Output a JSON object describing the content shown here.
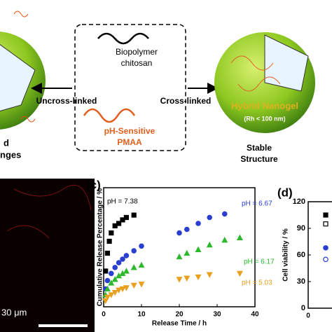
{
  "diagram": {
    "chitosan": [
      "Biopolymer",
      "chitosan"
    ],
    "pmaa": [
      "pH-Sensitive",
      "PMAA"
    ],
    "left_arrow": "Uncross-linked",
    "right_arrow": "Cross-linked",
    "nanogel": "Hybrid Nanogel",
    "size": "(Rh < 100 nm)",
    "stable": [
      "Stable",
      "Structure"
    ],
    "left_cut": [
      "d",
      "nges"
    ]
  },
  "micrograph": {
    "scale_bar": "30 μm"
  },
  "chart_data": [
    {
      "type": "scatter",
      "panel": "(c)",
      "x_label": "Release Time / h",
      "y_label": "Cumulative Release Percentage / %",
      "xlim": [
        0,
        40
      ],
      "xticks": [
        0,
        10,
        20,
        30,
        40
      ],
      "ylim": [
        0,
        100
      ],
      "series": [
        {
          "name": "pH = 7.38",
          "color": "#000000",
          "marker": "square",
          "x": [
            0.5,
            1,
            1.5,
            2,
            3,
            4,
            5,
            6,
            8
          ],
          "values": [
            30,
            45,
            55,
            62,
            68,
            70,
            73,
            75,
            77
          ]
        },
        {
          "name": "pH = 6.67",
          "color": "#2a3fd0",
          "marker": "circle",
          "x": [
            0.5,
            1,
            2,
            3,
            4,
            5,
            6,
            8,
            10,
            20,
            22,
            25,
            28,
            32
          ],
          "values": [
            15,
            22,
            28,
            33,
            37,
            40,
            43,
            47,
            51,
            62,
            65,
            70,
            75,
            78
          ]
        },
        {
          "name": "pH = 6.17",
          "color": "#2db82d",
          "marker": "triangle-up",
          "x": [
            0.5,
            1,
            2,
            3,
            4,
            5,
            6,
            8,
            10,
            20,
            22,
            25,
            28,
            32,
            36
          ],
          "values": [
            10,
            15,
            20,
            23,
            26,
            28,
            30,
            33,
            35,
            42,
            45,
            48,
            52,
            56,
            58
          ]
        },
        {
          "name": "pH = 5.03",
          "color": "#e8a020",
          "marker": "triangle-down",
          "x": [
            0.5,
            1,
            2,
            3,
            4,
            5,
            6,
            8,
            10,
            20,
            22,
            25,
            28,
            36
          ],
          "values": [
            5,
            8,
            10,
            12,
            14,
            15,
            16,
            18,
            19,
            23,
            24,
            25,
            27,
            28
          ]
        }
      ]
    },
    {
      "type": "scatter",
      "panel": "(d)",
      "y_label": "Cell viability / %",
      "xlim": [
        0,
        2
      ],
      "xticks": [
        0
      ],
      "ylim": [
        0,
        120
      ],
      "yticks": [
        0,
        30,
        60,
        90,
        120
      ],
      "series": [
        {
          "color": "#000000",
          "marker": "square",
          "filled": true,
          "x": [
            1
          ],
          "values": [
            105
          ]
        },
        {
          "color": "#000000",
          "marker": "square",
          "filled": false,
          "x": [
            1
          ],
          "values": [
            95
          ]
        },
        {
          "color": "#2a3fd0",
          "marker": "circle",
          "filled": true,
          "x": [
            1
          ],
          "values": [
            68
          ]
        },
        {
          "color": "#2a3fd0",
          "marker": "circle",
          "filled": false,
          "x": [
            1
          ],
          "values": [
            55
          ]
        }
      ]
    }
  ]
}
